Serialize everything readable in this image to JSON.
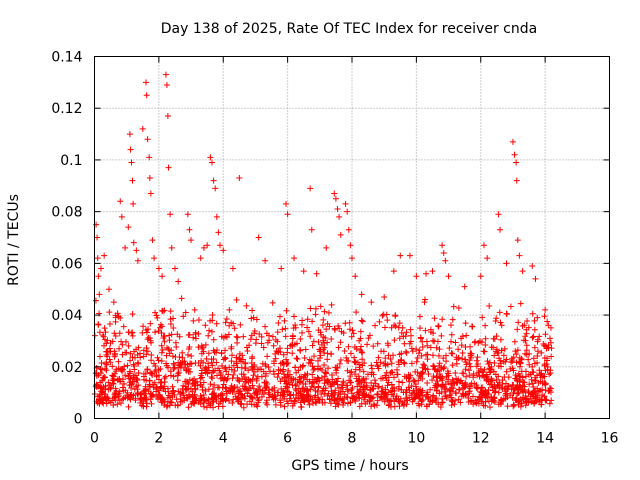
{
  "chart_data": {
    "type": "scatter",
    "title": "Day 138 of 2025, Rate Of TEC Index for receiver cnda",
    "xlabel": "GPS time / hours",
    "ylabel": "ROTI / TECUs",
    "xlim": [
      0,
      16
    ],
    "ylim": [
      0,
      0.14
    ],
    "xticks": [
      0,
      2,
      4,
      6,
      8,
      10,
      12,
      14,
      16
    ],
    "yticks": [
      0,
      0.02,
      0.04,
      0.06,
      0.08,
      0.1,
      0.12,
      0.14
    ],
    "xtick_labels": [
      "0",
      "2",
      "4",
      "6",
      "8",
      "10",
      "12",
      "14",
      "16"
    ],
    "ytick_labels": [
      "0",
      "0.02",
      "0.04",
      "0.06",
      "0.08",
      "0.1",
      "0.12",
      "0.14"
    ],
    "grid": true,
    "marker": "+",
    "color": "#ff0000",
    "series": [
      {
        "name": "ROTI",
        "points": [
          [
            0.05,
            0.075
          ],
          [
            0.08,
            0.07
          ],
          [
            0.1,
            0.062
          ],
          [
            0.12,
            0.055
          ],
          [
            0.15,
            0.048
          ],
          [
            0.2,
            0.058
          ],
          [
            0.3,
            0.063
          ],
          [
            0.45,
            0.05
          ],
          [
            0.6,
            0.045
          ],
          [
            0.8,
            0.084
          ],
          [
            0.85,
            0.078
          ],
          [
            0.95,
            0.066
          ],
          [
            1.05,
            0.074
          ],
          [
            1.1,
            0.11
          ],
          [
            1.12,
            0.104
          ],
          [
            1.15,
            0.099
          ],
          [
            1.18,
            0.092
          ],
          [
            1.2,
            0.083
          ],
          [
            1.22,
            0.068
          ],
          [
            1.3,
            0.065
          ],
          [
            1.35,
            0.061
          ],
          [
            1.5,
            0.112
          ],
          [
            1.6,
            0.13
          ],
          [
            1.62,
            0.125
          ],
          [
            1.65,
            0.108
          ],
          [
            1.7,
            0.101
          ],
          [
            1.72,
            0.093
          ],
          [
            1.75,
            0.087
          ],
          [
            1.8,
            0.069
          ],
          [
            1.85,
            0.062
          ],
          [
            2.0,
            0.058
          ],
          [
            2.1,
            0.055
          ],
          [
            2.22,
            0.133
          ],
          [
            2.25,
            0.129
          ],
          [
            2.28,
            0.117
          ],
          [
            2.3,
            0.097
          ],
          [
            2.35,
            0.079
          ],
          [
            2.4,
            0.066
          ],
          [
            2.5,
            0.058
          ],
          [
            2.6,
            0.053
          ],
          [
            2.9,
            0.079
          ],
          [
            2.95,
            0.073
          ],
          [
            3.0,
            0.069
          ],
          [
            3.3,
            0.062
          ],
          [
            3.4,
            0.066
          ],
          [
            3.5,
            0.067
          ],
          [
            3.6,
            0.101
          ],
          [
            3.65,
            0.099
          ],
          [
            3.7,
            0.092
          ],
          [
            3.75,
            0.089
          ],
          [
            3.8,
            0.078
          ],
          [
            3.85,
            0.072
          ],
          [
            3.9,
            0.067
          ],
          [
            4.5,
            0.093
          ],
          [
            4.0,
            0.065
          ],
          [
            4.3,
            0.058
          ],
          [
            5.1,
            0.07
          ],
          [
            5.3,
            0.061
          ],
          [
            5.8,
            0.058
          ],
          [
            5.95,
            0.083
          ],
          [
            6.0,
            0.079
          ],
          [
            6.2,
            0.062
          ],
          [
            6.5,
            0.057
          ],
          [
            6.7,
            0.089
          ],
          [
            6.75,
            0.073
          ],
          [
            6.9,
            0.056
          ],
          [
            7.2,
            0.066
          ],
          [
            7.45,
            0.087
          ],
          [
            7.5,
            0.085
          ],
          [
            7.55,
            0.081
          ],
          [
            7.6,
            0.078
          ],
          [
            7.65,
            0.071
          ],
          [
            7.8,
            0.083
          ],
          [
            7.85,
            0.08
          ],
          [
            7.9,
            0.073
          ],
          [
            7.95,
            0.067
          ],
          [
            8.0,
            0.062
          ],
          [
            8.1,
            0.055
          ],
          [
            8.3,
            0.048
          ],
          [
            8.6,
            0.045
          ],
          [
            9.0,
            0.047
          ],
          [
            9.3,
            0.057
          ],
          [
            9.5,
            0.063
          ],
          [
            9.8,
            0.063
          ],
          [
            10.0,
            0.055
          ],
          [
            10.3,
            0.056
          ],
          [
            10.5,
            0.057
          ],
          [
            10.8,
            0.067
          ],
          [
            10.85,
            0.064
          ],
          [
            10.9,
            0.061
          ],
          [
            11.0,
            0.055
          ],
          [
            11.5,
            0.051
          ],
          [
            12.0,
            0.055
          ],
          [
            12.1,
            0.067
          ],
          [
            12.2,
            0.062
          ],
          [
            12.55,
            0.079
          ],
          [
            12.6,
            0.073
          ],
          [
            12.8,
            0.06
          ],
          [
            13.0,
            0.107
          ],
          [
            13.05,
            0.102
          ],
          [
            13.1,
            0.099
          ],
          [
            13.12,
            0.092
          ],
          [
            13.15,
            0.069
          ],
          [
            13.2,
            0.063
          ],
          [
            13.3,
            0.057
          ],
          [
            13.6,
            0.059
          ],
          [
            13.7,
            0.054
          ],
          [
            14.0,
            0.042
          ],
          [
            14.1,
            0.036
          ],
          [
            14.15,
            0.031
          ]
        ],
        "dense_band": {
          "x_range": [
            0,
            14.2
          ],
          "y_min": 0.004,
          "y_typical_max": 0.045,
          "count": 2200
        }
      }
    ]
  }
}
